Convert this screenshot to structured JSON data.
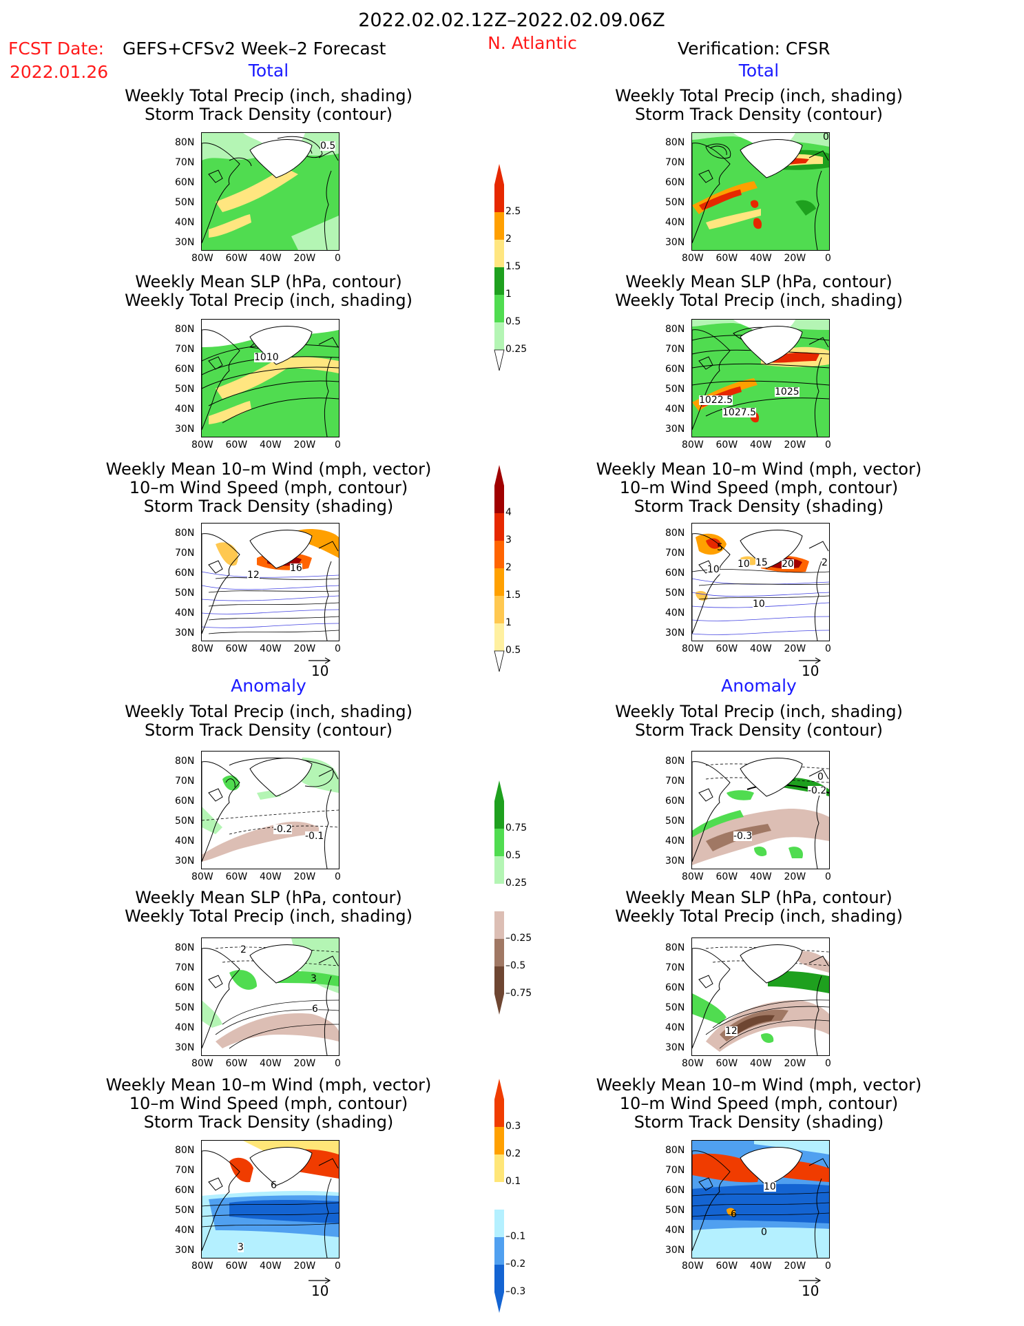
{
  "header": {
    "date_range": "2022.02.02.12Z–2022.02.09.06Z",
    "fcst_date_label": "FCST Date:",
    "fcst_date": "2022.01.26",
    "forecast_name": "GEFS+CFSv2 Week–2 Forecast",
    "region": "N. Atlantic",
    "verification": "Verification: CFSR"
  },
  "section_labels": {
    "total": "Total",
    "anomaly": "Anomaly"
  },
  "panel_titles": {
    "precip_storm": [
      "Weekly Total Precip (inch, shading)",
      "Storm Track Density (contour)"
    ],
    "slp_precip": [
      "Weekly Mean SLP (hPa, contour)",
      "Weekly Total Precip (inch, shading)"
    ],
    "wind_storm": [
      "Weekly Mean 10–m Wind (mph, vector)",
      "10–m Wind Speed (mph, contour)",
      "Storm Track Density (shading)"
    ]
  },
  "axes": {
    "lat_ticks": [
      "80N",
      "70N",
      "60N",
      "50N",
      "40N",
      "30N"
    ],
    "lon_ticks": [
      "80W",
      "60W",
      "40W",
      "20W",
      "0"
    ]
  },
  "contour_labels": {
    "fcst_total_precip": "0.5",
    "fcst_total_slp": "1010",
    "fcst_total_wind": [
      "12",
      "16"
    ],
    "ver_total_precip": "0",
    "ver_total_slp": [
      "1022.5",
      "1027.5",
      "1025"
    ],
    "ver_total_wind": [
      "5",
      "10",
      "15",
      "20",
      "10",
      "2",
      "10"
    ],
    "fcst_anom_precip": [
      "-0.2",
      "-0.1"
    ],
    "fcst_anom_slp": [
      "2",
      "6",
      "3"
    ],
    "fcst_anom_wind": [
      "6",
      "3"
    ],
    "ver_anom_precip": [
      "-0.2",
      "-0.3",
      "0"
    ],
    "ver_anom_slp": [
      "12"
    ],
    "ver_anom_wind": [
      "10",
      "6",
      "0"
    ]
  },
  "vector_ref": "10",
  "colorbars": {
    "precip_total": {
      "labels": [
        "2.5",
        "2",
        "1.5",
        "1",
        "0.5",
        "0.25"
      ],
      "colors": [
        "#e62800",
        "#ff9f00",
        "#ffe680",
        "#1ea01e",
        "#50dc50",
        "#b4f5b4"
      ]
    },
    "storm_total": {
      "labels": [
        "4",
        "3",
        "2",
        "1.5",
        "1",
        "0.5"
      ],
      "colors": [
        "#a00000",
        "#e62800",
        "#ff6400",
        "#ffa000",
        "#ffc850",
        "#fff0a0"
      ]
    },
    "precip_anom": {
      "labels": [
        "0.75",
        "0.5",
        "0.25",
        "–0.25",
        "–0.5",
        "–0.75"
      ],
      "colors": [
        "#1ea01e",
        "#50dc50",
        "#b4f5b4",
        "#ffffff",
        "#dcbeb4",
        "#a07864",
        "#6e4632"
      ]
    },
    "storm_anom": {
      "labels": [
        "0.3",
        "0.2",
        "0.1",
        "–0.1",
        "–0.2",
        "–0.3"
      ],
      "colors": [
        "#f03c00",
        "#ffa000",
        "#ffe678",
        "#ffffff",
        "#b4f0ff",
        "#50a0f0",
        "#1464d2"
      ]
    }
  }
}
